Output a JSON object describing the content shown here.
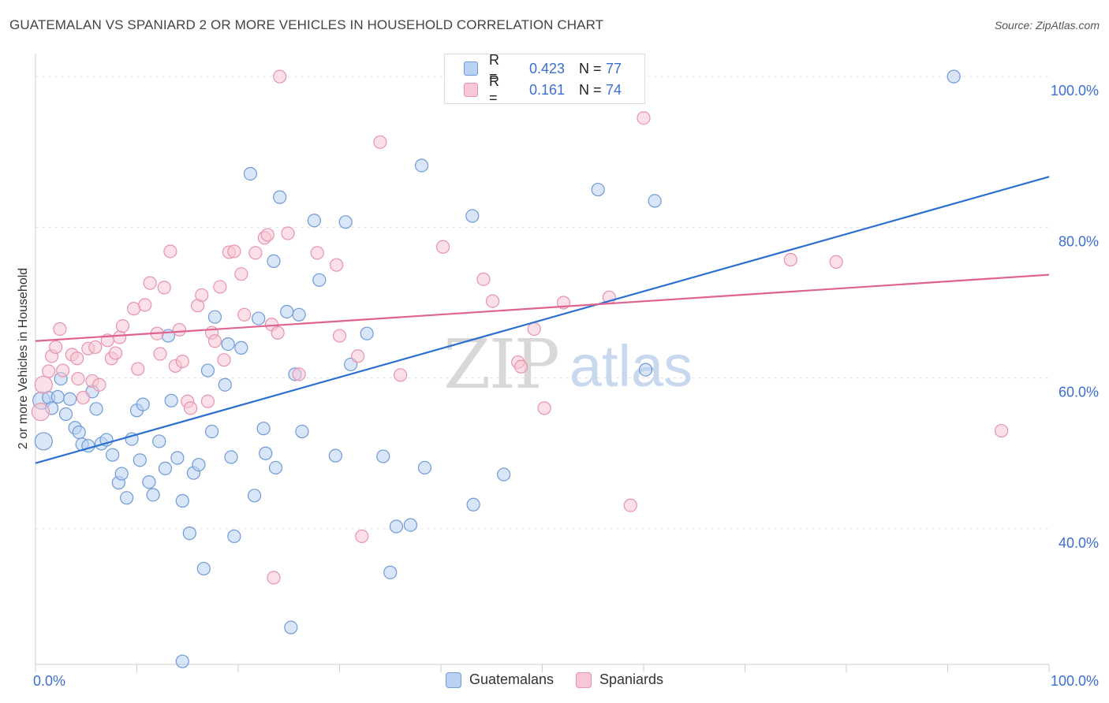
{
  "header": {
    "title": "GUATEMALAN VS SPANIARD 2 OR MORE VEHICLES IN HOUSEHOLD CORRELATION CHART",
    "source": "Source: ZipAtlas.com"
  },
  "legend_top": {
    "rows": [
      {
        "r_label": "R =",
        "r_value": "0.423",
        "n_label": "N =",
        "n_value": "77"
      },
      {
        "r_label": "R =",
        "r_value": "0.161",
        "n_label": "N =",
        "n_value": "74"
      }
    ]
  },
  "legend_bottom": [
    "Guatemalans",
    "Spaniards"
  ],
  "watermark": {
    "zip": "ZIP",
    "atlas": "atlas"
  },
  "chart_data": {
    "type": "scatter",
    "ylabel": "2 or more Vehicles in Household",
    "xlim": [
      0,
      100
    ],
    "ylim": [
      22,
      102
    ],
    "x_tick_labels": [
      "0.0%",
      "100.0%"
    ],
    "y_ticks": [
      40,
      60,
      80,
      100
    ],
    "y_tick_labels": [
      "40.0%",
      "60.0%",
      "80.0%",
      "100.0%"
    ],
    "colors": {
      "guatemalans_fill": "#b9d2f3",
      "guatemalans_stroke": "#6f9ad8",
      "guatemalans_line": "#2c6fd0",
      "spaniards_fill": "#f8c6d4",
      "spaniards_stroke": "#e893ad",
      "spaniards_line": "#e0638f",
      "tick_label": "#3b6fd4",
      "grid": "#e3e3e3"
    },
    "series": [
      {
        "name": "Guatemalans",
        "r": 0.423,
        "n": 77,
        "trend": [
          [
            0,
            48.7
          ],
          [
            100,
            86.7
          ]
        ],
        "points": [
          [
            0.6,
            57.0
          ],
          [
            0.8,
            51.6
          ],
          [
            1.3,
            57.4
          ],
          [
            1.6,
            56.0
          ],
          [
            2.2,
            57.5
          ],
          [
            2.5,
            59.9
          ],
          [
            3.0,
            55.2
          ],
          [
            3.4,
            57.2
          ],
          [
            3.9,
            53.4
          ],
          [
            4.3,
            52.8
          ],
          [
            4.6,
            51.2
          ],
          [
            5.2,
            51.0
          ],
          [
            5.6,
            58.2
          ],
          [
            6.0,
            55.9
          ],
          [
            6.5,
            51.3
          ],
          [
            7.0,
            51.8
          ],
          [
            7.6,
            49.8
          ],
          [
            8.2,
            46.1
          ],
          [
            8.5,
            47.3
          ],
          [
            9.0,
            44.1
          ],
          [
            9.5,
            51.9
          ],
          [
            10.0,
            55.7
          ],
          [
            10.3,
            49.1
          ],
          [
            10.6,
            56.5
          ],
          [
            11.2,
            46.2
          ],
          [
            11.6,
            44.5
          ],
          [
            12.2,
            51.6
          ],
          [
            12.8,
            48.0
          ],
          [
            13.1,
            65.6
          ],
          [
            13.4,
            57.0
          ],
          [
            14.0,
            49.4
          ],
          [
            14.5,
            43.7
          ],
          [
            15.2,
            39.4
          ],
          [
            15.6,
            47.4
          ],
          [
            16.1,
            48.5
          ],
          [
            16.6,
            34.7
          ],
          [
            17.0,
            61.0
          ],
          [
            17.4,
            52.9
          ],
          [
            17.7,
            68.1
          ],
          [
            18.7,
            59.1
          ],
          [
            19.0,
            64.5
          ],
          [
            19.3,
            49.5
          ],
          [
            19.6,
            39.0
          ],
          [
            20.3,
            64.0
          ],
          [
            21.2,
            87.1
          ],
          [
            21.6,
            44.4
          ],
          [
            22.0,
            67.9
          ],
          [
            22.5,
            53.3
          ],
          [
            22.7,
            50.0
          ],
          [
            23.5,
            75.5
          ],
          [
            23.7,
            48.1
          ],
          [
            24.1,
            84.0
          ],
          [
            24.8,
            68.8
          ],
          [
            25.2,
            26.9
          ],
          [
            25.6,
            60.5
          ],
          [
            26.0,
            68.4
          ],
          [
            26.3,
            52.9
          ],
          [
            27.5,
            80.9
          ],
          [
            28.0,
            73.0
          ],
          [
            29.6,
            49.7
          ],
          [
            30.6,
            80.7
          ],
          [
            31.1,
            61.8
          ],
          [
            32.7,
            65.9
          ],
          [
            34.3,
            49.6
          ],
          [
            35.0,
            34.2
          ],
          [
            35.6,
            40.3
          ],
          [
            37.0,
            40.5
          ],
          [
            38.1,
            88.2
          ],
          [
            38.4,
            48.1
          ],
          [
            43.1,
            81.5
          ],
          [
            43.2,
            43.2
          ],
          [
            46.2,
            47.2
          ],
          [
            55.5,
            85.0
          ],
          [
            60.2,
            61.1
          ],
          [
            61.1,
            83.5
          ],
          [
            90.6,
            100.0
          ],
          [
            14.5,
            22.4
          ]
        ]
      },
      {
        "name": "Spaniards",
        "r": 0.161,
        "n": 74,
        "trend": [
          [
            0,
            64.9
          ],
          [
            100,
            73.7
          ]
        ],
        "points": [
          [
            0.5,
            55.5
          ],
          [
            0.8,
            59.1
          ],
          [
            1.3,
            60.9
          ],
          [
            1.6,
            62.9
          ],
          [
            2.0,
            64.1
          ],
          [
            2.4,
            66.5
          ],
          [
            2.7,
            61.0
          ],
          [
            3.6,
            63.1
          ],
          [
            4.1,
            62.6
          ],
          [
            4.2,
            59.9
          ],
          [
            4.7,
            57.4
          ],
          [
            5.2,
            63.9
          ],
          [
            5.6,
            59.6
          ],
          [
            5.9,
            64.1
          ],
          [
            6.3,
            59.1
          ],
          [
            7.1,
            65.0
          ],
          [
            7.5,
            62.6
          ],
          [
            7.9,
            63.3
          ],
          [
            8.3,
            65.4
          ],
          [
            8.6,
            66.9
          ],
          [
            9.7,
            69.2
          ],
          [
            10.1,
            61.2
          ],
          [
            10.8,
            69.7
          ],
          [
            11.3,
            72.6
          ],
          [
            12.0,
            65.9
          ],
          [
            12.3,
            63.2
          ],
          [
            12.7,
            72.0
          ],
          [
            13.3,
            76.8
          ],
          [
            13.8,
            61.6
          ],
          [
            14.2,
            66.4
          ],
          [
            14.5,
            62.2
          ],
          [
            15.0,
            56.9
          ],
          [
            15.3,
            56.0
          ],
          [
            16.0,
            69.6
          ],
          [
            16.4,
            71.0
          ],
          [
            17.0,
            56.9
          ],
          [
            17.4,
            66.0
          ],
          [
            17.7,
            64.9
          ],
          [
            18.2,
            72.1
          ],
          [
            18.6,
            62.4
          ],
          [
            19.1,
            76.7
          ],
          [
            19.6,
            76.8
          ],
          [
            20.3,
            73.8
          ],
          [
            20.6,
            68.4
          ],
          [
            21.7,
            76.6
          ],
          [
            22.6,
            78.6
          ],
          [
            22.9,
            79.0
          ],
          [
            23.3,
            67.1
          ],
          [
            23.5,
            33.5
          ],
          [
            23.9,
            66.0
          ],
          [
            24.1,
            100.0
          ],
          [
            24.9,
            79.2
          ],
          [
            26.0,
            60.5
          ],
          [
            27.8,
            76.6
          ],
          [
            29.7,
            75.0
          ],
          [
            30.0,
            65.6
          ],
          [
            31.8,
            62.9
          ],
          [
            32.2,
            39.0
          ],
          [
            34.0,
            91.3
          ],
          [
            36.0,
            60.4
          ],
          [
            40.2,
            77.4
          ],
          [
            44.2,
            73.1
          ],
          [
            45.1,
            70.2
          ],
          [
            47.6,
            62.1
          ],
          [
            47.9,
            61.5
          ],
          [
            49.2,
            66.5
          ],
          [
            50.2,
            56.0
          ],
          [
            52.1,
            70.0
          ],
          [
            56.6,
            70.7
          ],
          [
            58.7,
            43.1
          ],
          [
            60.0,
            94.5
          ],
          [
            74.5,
            75.7
          ],
          [
            79.0,
            75.4
          ],
          [
            95.3,
            53.0
          ]
        ]
      }
    ]
  }
}
